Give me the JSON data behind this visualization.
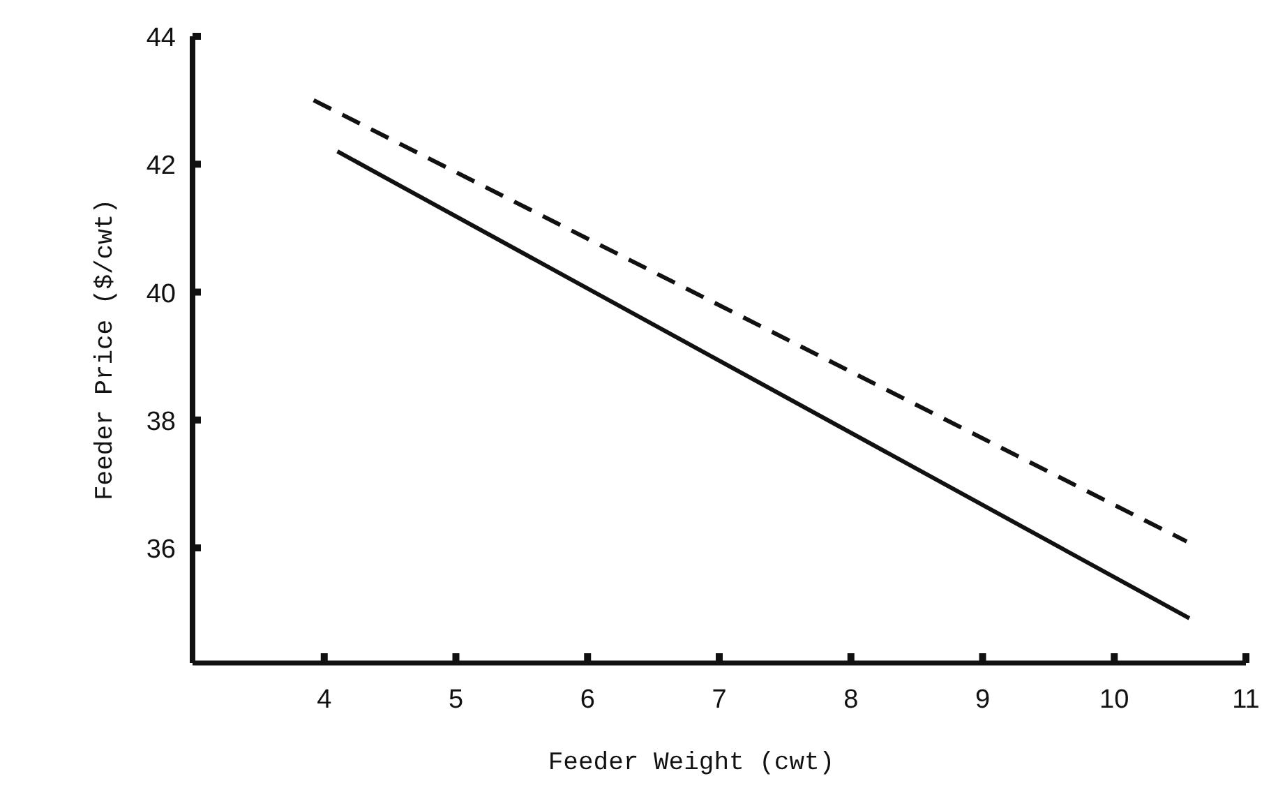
{
  "chart_data": {
    "type": "line",
    "xlabel": "Feeder Weight (cwt)",
    "ylabel": "Feeder Price ($/cwt)",
    "xlim": [
      3,
      11
    ],
    "ylim": [
      34.2,
      44
    ],
    "xticks": [
      4,
      5,
      6,
      7,
      8,
      9,
      10,
      11
    ],
    "yticks": [
      36,
      38,
      40,
      42,
      44
    ],
    "grid": false,
    "marker": "none",
    "series": [
      {
        "color": "#111111",
        "line_style": "solid",
        "x": [
          4.1,
          10.57
        ],
        "values": [
          42.2,
          34.9
        ]
      },
      {
        "color": "#111111",
        "line_style": "dashed",
        "x": [
          3.92,
          10.55
        ],
        "values": [
          43.0,
          36.1
        ]
      }
    ]
  }
}
